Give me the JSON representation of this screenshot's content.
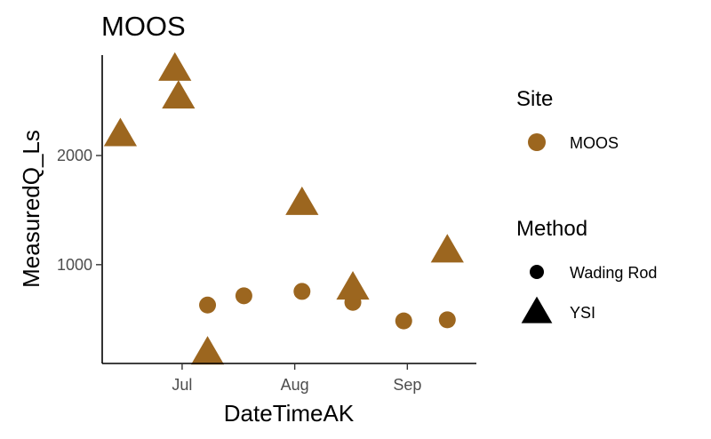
{
  "chart_data": {
    "type": "scatter",
    "title": "MOOS",
    "xlabel": "DateTimeAK",
    "ylabel": "MeasuredQ_Ls",
    "x_axis": {
      "type": "date",
      "range": [
        "2021-06-09",
        "2021-09-20"
      ],
      "ticks": [
        {
          "date": "2021-07-01",
          "label": "Jul"
        },
        {
          "date": "2021-08-01",
          "label": "Aug"
        },
        {
          "date": "2021-09-01",
          "label": "Sep"
        }
      ]
    },
    "y_axis": {
      "range": [
        95,
        2920
      ],
      "ticks": [
        {
          "value": 1000,
          "label": "1000"
        },
        {
          "value": 2000,
          "label": "2000"
        }
      ]
    },
    "grid": false,
    "legend_position": "right",
    "color": "#9c661f",
    "series": [
      {
        "method": "Wading Rod",
        "shape": "circle",
        "points": [
          {
            "x": "2021-07-08",
            "y": 630
          },
          {
            "x": "2021-07-18",
            "y": 715
          },
          {
            "x": "2021-08-03",
            "y": 755
          },
          {
            "x": "2021-08-17",
            "y": 655
          },
          {
            "x": "2021-08-31",
            "y": 485
          },
          {
            "x": "2021-09-12",
            "y": 495
          }
        ]
      },
      {
        "method": "YSI",
        "shape": "triangle",
        "points": [
          {
            "x": "2021-06-14",
            "y": 2195
          },
          {
            "x": "2021-06-29",
            "y": 2795
          },
          {
            "x": "2021-06-30",
            "y": 2540
          },
          {
            "x": "2021-07-08",
            "y": 195
          },
          {
            "x": "2021-08-03",
            "y": 1565
          },
          {
            "x": "2021-08-17",
            "y": 790
          },
          {
            "x": "2021-09-12",
            "y": 1130
          }
        ]
      }
    ],
    "legends": [
      {
        "title": "Site",
        "entries": [
          {
            "label": "MOOS",
            "shape": "circle",
            "color": "#9c661f"
          }
        ]
      },
      {
        "title": "Method",
        "entries": [
          {
            "label": "Wading Rod",
            "shape": "circle",
            "color": "#000000"
          },
          {
            "label": "YSI",
            "shape": "triangle",
            "color": "#000000"
          }
        ]
      }
    ]
  }
}
